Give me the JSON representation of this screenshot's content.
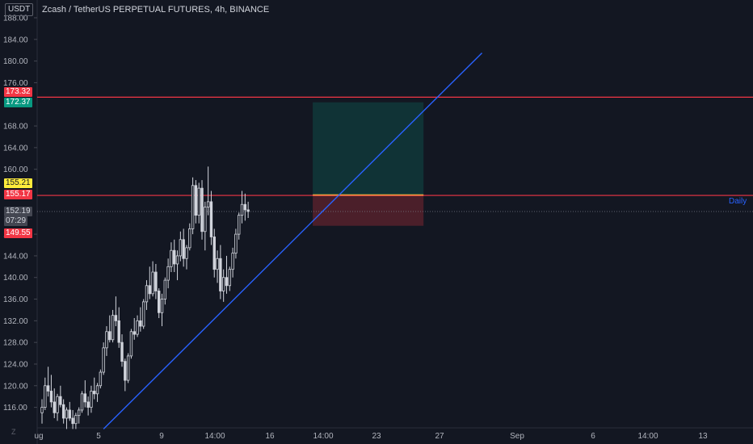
{
  "header": {
    "currency": "USDT",
    "title": "Zcash / TetherUS PERPETUAL FUTURES, 4h, BINANCE"
  },
  "watermark": "Z",
  "chart_data": {
    "type": "candlestick",
    "title": "Zcash / TetherUS PERPETUAL FUTURES, 4h, BINANCE",
    "ylim": [
      112,
      189
    ],
    "y_ticks": [
      "188.00",
      "184.00",
      "180.00",
      "176.00",
      "168.00",
      "164.00",
      "160.00",
      "148.00",
      "144.00",
      "140.00",
      "136.00",
      "132.00",
      "128.00",
      "124.00",
      "120.00",
      "116.00"
    ],
    "x_ticks": [
      "ug",
      "5",
      "9",
      "14:00",
      "16",
      "14:00",
      "23",
      "27",
      "Sep",
      "6",
      "14:00",
      "13"
    ],
    "price_labels": [
      {
        "value": "173.32",
        "bg": "#f23645",
        "fg": "#ffffff"
      },
      {
        "value": "172.37",
        "bg": "#089981",
        "fg": "#ffffff"
      },
      {
        "value": "155.21",
        "bg": "#ffeb3b",
        "fg": "#131722"
      },
      {
        "value": "155.17",
        "bg": "#f23645",
        "fg": "#ffffff"
      },
      {
        "value": "152.19",
        "bg": "#434651",
        "fg": "#d1d4dc"
      },
      {
        "value": "07:29",
        "bg": "#434651",
        "fg": "#d1d4dc"
      },
      {
        "value": "149.55",
        "bg": "#f23645",
        "fg": "#ffffff"
      }
    ],
    "horizontal_lines": [
      {
        "price": 173.32,
        "color": "#f23645"
      },
      {
        "price": 155.17,
        "color": "#f23645"
      },
      {
        "price": 152.19,
        "color": "#787b86",
        "dashed": true
      }
    ],
    "line_label": "Daily",
    "trendline": {
      "color": "#2962ff",
      "from": {
        "bar": 20,
        "price": 112.0
      },
      "to": {
        "bar": 143,
        "price": 181.5
      }
    },
    "position": {
      "entry": 155.21,
      "target": 172.37,
      "stop": 149.55,
      "bar_start": 88,
      "bar_end": 124
    },
    "colors": {
      "up": "#d1d4dc",
      "down": "#d1d4dc",
      "bg": "#131722",
      "grid": "#1e222d"
    },
    "candles": [
      [
        115.0,
        117.5,
        113.0,
        116.0
      ],
      [
        116.0,
        121.5,
        115.5,
        120.0
      ],
      [
        120.0,
        123.5,
        118.0,
        119.0
      ],
      [
        119.0,
        122.0,
        116.0,
        117.0
      ],
      [
        117.0,
        119.5,
        114.0,
        115.0
      ],
      [
        115.0,
        118.5,
        113.5,
        118.0
      ],
      [
        118.0,
        120.0,
        116.0,
        116.5
      ],
      [
        116.5,
        117.5,
        113.0,
        114.0
      ],
      [
        114.0,
        116.0,
        112.0,
        115.5
      ],
      [
        115.5,
        117.0,
        113.5,
        114.0
      ],
      [
        114.0,
        115.5,
        112.0,
        113.0
      ],
      [
        113.0,
        115.0,
        112.0,
        114.5
      ],
      [
        114.5,
        116.0,
        113.0,
        115.5
      ],
      [
        115.5,
        119.0,
        115.0,
        118.5
      ],
      [
        118.5,
        121.0,
        116.0,
        117.0
      ],
      [
        117.0,
        118.0,
        114.5,
        116.0
      ],
      [
        116.0,
        120.0,
        115.0,
        119.0
      ],
      [
        119.0,
        121.5,
        117.5,
        118.5
      ],
      [
        118.5,
        120.5,
        117.0,
        120.0
      ],
      [
        120.0,
        123.0,
        119.5,
        122.5
      ],
      [
        122.5,
        128.0,
        122.0,
        127.0
      ],
      [
        127.0,
        131.0,
        125.5,
        130.0
      ],
      [
        130.0,
        133.0,
        128.0,
        128.5
      ],
      [
        128.5,
        134.0,
        128.0,
        133.0
      ],
      [
        133.0,
        136.5,
        131.0,
        132.0
      ],
      [
        132.0,
        134.5,
        127.0,
        128.0
      ],
      [
        128.0,
        129.5,
        123.5,
        124.5
      ],
      [
        124.5,
        125.0,
        119.0,
        121.0
      ],
      [
        121.0,
        126.0,
        120.5,
        125.5
      ],
      [
        125.5,
        130.5,
        125.0,
        130.0
      ],
      [
        130.0,
        132.5,
        128.5,
        129.5
      ],
      [
        129.5,
        133.0,
        129.0,
        132.0
      ],
      [
        132.0,
        134.5,
        130.0,
        131.0
      ],
      [
        131.0,
        136.0,
        130.5,
        135.5
      ],
      [
        135.5,
        139.5,
        134.0,
        138.5
      ],
      [
        138.5,
        142.0,
        136.0,
        137.0
      ],
      [
        137.0,
        143.0,
        136.5,
        141.0
      ],
      [
        141.0,
        142.5,
        136.0,
        137.5
      ],
      [
        137.5,
        138.0,
        132.5,
        133.5
      ],
      [
        133.5,
        137.0,
        131.0,
        136.0
      ],
      [
        136.0,
        140.0,
        135.0,
        139.5
      ],
      [
        139.5,
        143.5,
        138.0,
        142.0
      ],
      [
        142.0,
        146.5,
        141.0,
        145.0
      ],
      [
        145.0,
        147.0,
        141.0,
        142.5
      ],
      [
        142.5,
        145.0,
        139.5,
        144.0
      ],
      [
        144.0,
        148.5,
        143.0,
        147.0
      ],
      [
        147.0,
        149.0,
        142.0,
        143.5
      ],
      [
        143.5,
        146.0,
        141.5,
        145.5
      ],
      [
        145.5,
        150.0,
        145.0,
        149.0
      ],
      [
        149.0,
        158.5,
        148.0,
        157.0
      ],
      [
        157.0,
        158.0,
        150.0,
        151.5
      ],
      [
        151.5,
        157.5,
        150.0,
        156.5
      ],
      [
        156.5,
        158.0,
        147.0,
        148.5
      ],
      [
        148.5,
        154.0,
        145.0,
        153.0
      ],
      [
        153.0,
        160.5,
        151.5,
        154.0
      ],
      [
        154.0,
        156.0,
        146.0,
        147.5
      ],
      [
        147.5,
        149.0,
        140.0,
        141.5
      ],
      [
        141.5,
        145.0,
        139.0,
        143.5
      ],
      [
        143.5,
        146.0,
        136.0,
        137.5
      ],
      [
        137.5,
        141.5,
        135.5,
        140.0
      ],
      [
        140.0,
        144.0,
        137.0,
        138.5
      ],
      [
        138.5,
        142.0,
        137.5,
        141.5
      ],
      [
        141.5,
        145.5,
        140.0,
        144.5
      ],
      [
        144.5,
        149.0,
        143.5,
        148.0
      ],
      [
        148.0,
        152.0,
        147.0,
        151.5
      ],
      [
        151.5,
        156.0,
        150.0,
        153.5
      ],
      [
        153.5,
        155.5,
        150.5,
        152.5
      ],
      [
        152.5,
        154.0,
        151.0,
        152.2
      ]
    ]
  }
}
